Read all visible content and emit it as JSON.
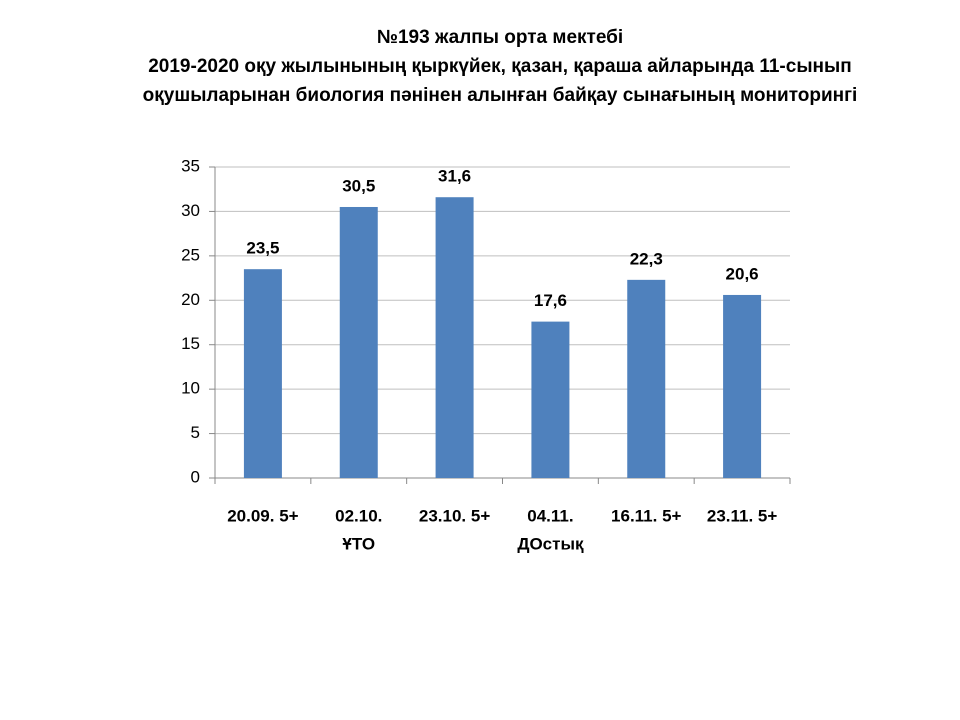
{
  "chart_data": {
    "type": "bar",
    "title": [
      "№193  жалпы  орта  мектебі",
      "2019-2020  оқу жылынының қыркүйек, қазан, қараша айларында  11-сынып",
      "оқушыларынан биология пәнінен алынған байқау сынағының мониторингі"
    ],
    "categories": [
      [
        "20.09. 5+"
      ],
      [
        "02.10.",
        "ҰТО"
      ],
      [
        "23.10. 5+"
      ],
      [
        "04.11.",
        "ДОстық"
      ],
      [
        "16.11. 5+"
      ],
      [
        "23.11. 5+"
      ]
    ],
    "values": [
      23.5,
      30.5,
      31.6,
      17.6,
      22.3,
      20.6
    ],
    "value_labels": [
      "23,5",
      "30,5",
      "31,6",
      "17,6",
      "22,3",
      "20,6"
    ],
    "color": "#4f81bd",
    "ylim": [
      0,
      35
    ],
    "yticks": [
      0,
      5,
      10,
      15,
      20,
      25,
      30,
      35
    ],
    "grid": true
  }
}
